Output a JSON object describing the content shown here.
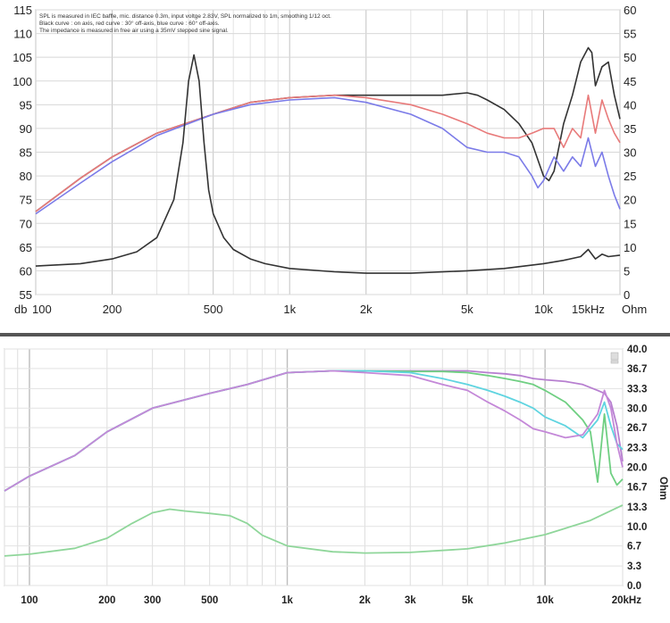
{
  "chart_data": [
    {
      "type": "line",
      "notes": [
        "SPL is measured in IEC baffle, mic. distance 0.3m, input voltge 2.83V, SPL normalized to 1m, smoothing 1/12 oct.",
        "Black curve : on axis, red curve : 30° off-axis, blue curve : 60° off-axis.",
        "The impedance is measured in free air using a 35mV stepped sine signal."
      ],
      "ylabel_left": "db",
      "ylabel_right": "Ohm",
      "xscale": "log",
      "xlim": [
        100,
        20000
      ],
      "ylim_left": [
        55,
        115
      ],
      "ylim_right": [
        0,
        60
      ],
      "grid": true,
      "x_ticks": [
        {
          "value": 100,
          "label": "100"
        },
        {
          "value": 200,
          "label": "200"
        },
        {
          "value": 500,
          "label": "500"
        },
        {
          "value": 1000,
          "label": "1k"
        },
        {
          "value": 2000,
          "label": "2k"
        },
        {
          "value": 5000,
          "label": "5k"
        },
        {
          "value": 10000,
          "label": "10k"
        },
        {
          "value": 15000,
          "label": "15kHz"
        }
      ],
      "y_left_ticks": [
        "55",
        "60",
        "65",
        "70",
        "75",
        "80",
        "85",
        "90",
        "95",
        "100",
        "105",
        "110",
        "115"
      ],
      "y_right_ticks": [
        "0",
        "5",
        "10",
        "15",
        "20",
        "25",
        "30",
        "35",
        "40",
        "45",
        "50",
        "55",
        "60"
      ],
      "series": [
        {
          "color": "#333333",
          "axis": "left",
          "x": [
            100,
            150,
            200,
            300,
            500,
            700,
            1000,
            1500,
            2000,
            3000,
            4000,
            5000,
            5500,
            6000,
            7000,
            8000,
            9000,
            10000,
            10500,
            11000,
            12000,
            13000,
            14000,
            15000,
            15500,
            16000,
            17000,
            18000,
            19000,
            20000
          ],
          "y": [
            72.5,
            79.5,
            84,
            89,
            93,
            95.5,
            96.5,
            97,
            97,
            97,
            97,
            97.5,
            97,
            96,
            94,
            91,
            87,
            80,
            79,
            81,
            91,
            97,
            104,
            107,
            106,
            99,
            103,
            104,
            97,
            92
          ]
        },
        {
          "color": "#e87a7a",
          "axis": "left",
          "x": [
            100,
            150,
            200,
            300,
            500,
            700,
            1000,
            1500,
            2000,
            3000,
            4000,
            5000,
            6000,
            7000,
            8000,
            9000,
            10000,
            11000,
            12000,
            13000,
            14000,
            15000,
            16000,
            17000,
            18000,
            19000,
            20000
          ],
          "y": [
            72.5,
            79.5,
            84,
            89,
            93,
            95.5,
            96.5,
            97,
            96.5,
            95,
            93,
            91,
            89,
            88,
            88,
            89,
            90,
            90,
            86,
            90,
            88,
            97,
            89,
            96,
            92,
            89,
            87
          ]
        },
        {
          "color": "#7b7be8",
          "axis": "left",
          "x": [
            100,
            150,
            200,
            300,
            500,
            700,
            1000,
            1500,
            2000,
            3000,
            4000,
            5000,
            6000,
            7000,
            8000,
            9000,
            9500,
            10000,
            11000,
            12000,
            13000,
            14000,
            15000,
            16000,
            17000,
            18000,
            19000,
            20000
          ],
          "y": [
            72,
            78.5,
            83,
            88.5,
            93,
            95,
            96,
            96.5,
            95.5,
            93,
            90,
            86,
            85,
            85,
            84,
            80,
            77.5,
            79,
            84,
            81,
            84,
            82,
            88,
            82,
            85,
            80,
            76,
            73
          ]
        },
        {
          "color": "#333333",
          "axis": "right",
          "x": [
            100,
            150,
            200,
            250,
            300,
            350,
            380,
            400,
            420,
            440,
            460,
            480,
            500,
            550,
            600,
            700,
            800,
            1000,
            1500,
            2000,
            3000,
            5000,
            7000,
            10000,
            12000,
            14000,
            15000,
            16000,
            17000,
            18000,
            20000
          ],
          "y": [
            6,
            6.5,
            7.5,
            9,
            12,
            20,
            32,
            45,
            50.5,
            45,
            32,
            22,
            17,
            12,
            9.5,
            7.5,
            6.5,
            5.5,
            4.8,
            4.5,
            4.5,
            5,
            5.5,
            6.5,
            7.2,
            8,
            9.5,
            7.5,
            8.5,
            8,
            8.3
          ]
        }
      ]
    },
    {
      "type": "line",
      "ylabel_right": "Ohm",
      "xscale": "log",
      "xlim": [
        80,
        20000
      ],
      "ylim_right": [
        0,
        40
      ],
      "grid": true,
      "x_ticks": [
        {
          "value": 100,
          "label": "100"
        },
        {
          "value": 200,
          "label": "200"
        },
        {
          "value": 300,
          "label": "300"
        },
        {
          "value": 500,
          "label": "500"
        },
        {
          "value": 1000,
          "label": "1k"
        },
        {
          "value": 2000,
          "label": "2k"
        },
        {
          "value": 3000,
          "label": "3k"
        },
        {
          "value": 5000,
          "label": "5k"
        },
        {
          "value": 10000,
          "label": "10k"
        },
        {
          "value": 20000,
          "label": "20kHz"
        }
      ],
      "y_right_ticks": [
        "0.0",
        "3.3",
        "6.7",
        "10.0",
        "13.3",
        "16.7",
        "20.0",
        "23.3",
        "26.7",
        "30.0",
        "33.3",
        "36.7",
        "40.0"
      ],
      "series": [
        {
          "color": "#b77fd0",
          "x": [
            80,
            100,
            150,
            200,
            300,
            500,
            700,
            1000,
            1500,
            2000,
            3000,
            4000,
            5000,
            6000,
            7000,
            8000,
            9000,
            10000,
            12000,
            14000,
            16000,
            17000,
            18000,
            19000,
            20000
          ],
          "y": [
            16,
            18.5,
            22,
            26,
            30,
            32.5,
            34,
            36,
            36.3,
            36.3,
            36.3,
            36.3,
            36.3,
            36,
            35.8,
            35.5,
            35,
            34.8,
            34.5,
            34,
            33,
            32.5,
            31,
            27,
            21
          ]
        },
        {
          "color": "#6fcf82",
          "x": [
            80,
            100,
            150,
            200,
            300,
            500,
            700,
            1000,
            1500,
            2000,
            3000,
            4000,
            5000,
            6000,
            7000,
            8000,
            9000,
            10000,
            12000,
            14000,
            15000,
            16000,
            17000,
            18000,
            19000,
            20000
          ],
          "y": [
            16,
            18.5,
            22,
            26,
            30,
            32.5,
            34,
            36,
            36.3,
            36.3,
            36.2,
            36.2,
            36,
            35.5,
            35,
            34.5,
            34,
            33,
            31,
            28,
            26,
            17.5,
            29,
            19,
            17,
            18
          ]
        },
        {
          "color": "#5fd4e0",
          "x": [
            80,
            100,
            150,
            200,
            300,
            500,
            700,
            1000,
            1500,
            2000,
            3000,
            4000,
            5000,
            6000,
            7000,
            8000,
            9000,
            10000,
            12000,
            14000,
            16000,
            17000,
            18000,
            19000,
            20000
          ],
          "y": [
            16,
            18.5,
            22,
            26,
            30,
            32.5,
            34,
            36,
            36.3,
            36.3,
            36,
            35,
            34,
            33,
            32,
            31,
            30,
            28.5,
            27,
            25,
            28,
            31,
            27,
            24,
            23
          ]
        },
        {
          "color": "#c488d8",
          "x": [
            80,
            100,
            150,
            200,
            300,
            500,
            700,
            1000,
            1500,
            2000,
            3000,
            4000,
            5000,
            6000,
            7000,
            8000,
            9000,
            10000,
            12000,
            14000,
            16000,
            17000,
            18000,
            19000,
            20000
          ],
          "y": [
            16,
            18.5,
            22,
            26,
            30,
            32.5,
            34,
            36,
            36.3,
            36,
            35.5,
            34,
            33,
            31,
            29.5,
            28,
            26.5,
            26,
            25,
            25.5,
            29,
            33,
            30,
            24,
            20
          ]
        },
        {
          "color": "#8fd69a",
          "x": [
            80,
            100,
            150,
            200,
            250,
            300,
            350,
            400,
            500,
            600,
            700,
            800,
            1000,
            1500,
            2000,
            3000,
            5000,
            7000,
            10000,
            15000,
            20000
          ],
          "y": [
            5,
            5.3,
            6.3,
            8,
            10.5,
            12.3,
            12.9,
            12.6,
            12.2,
            11.8,
            10.5,
            8.5,
            6.7,
            5.7,
            5.5,
            5.6,
            6.2,
            7.2,
            8.6,
            11,
            13.6
          ]
        }
      ]
    }
  ]
}
